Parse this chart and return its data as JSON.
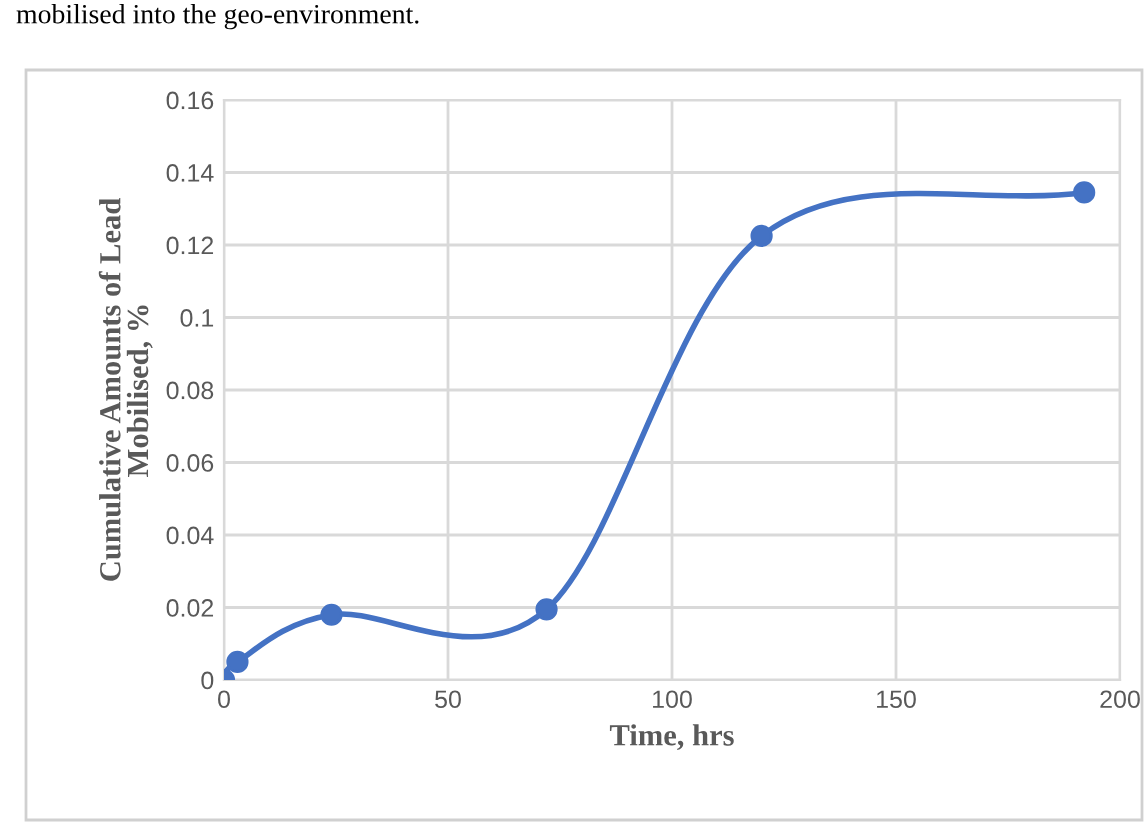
{
  "chart_data": {
    "type": "line",
    "xlabel": "Time, hrs",
    "ylabel": "Cumulative Amounts of Lead\nMobilised, %",
    "annotations": [
      "mobilised into the geo-environment."
    ],
    "x": [
      0,
      3,
      24,
      72,
      120,
      192
    ],
    "series": [
      {
        "color": "#4472c4",
        "values": [
          0,
          0.005,
          0.018,
          0.0195,
          0.1225,
          0.1345
        ]
      }
    ],
    "xlim": [
      0,
      200
    ],
    "xticks": [
      0,
      50,
      100,
      150,
      200
    ],
    "ylim": [
      0,
      0.16
    ],
    "yticks": [
      0,
      0.02,
      0.04,
      0.06,
      0.08,
      0.1,
      0.12,
      0.14,
      0.16
    ],
    "grid": true,
    "marker": "circle",
    "line_style": "solid"
  }
}
